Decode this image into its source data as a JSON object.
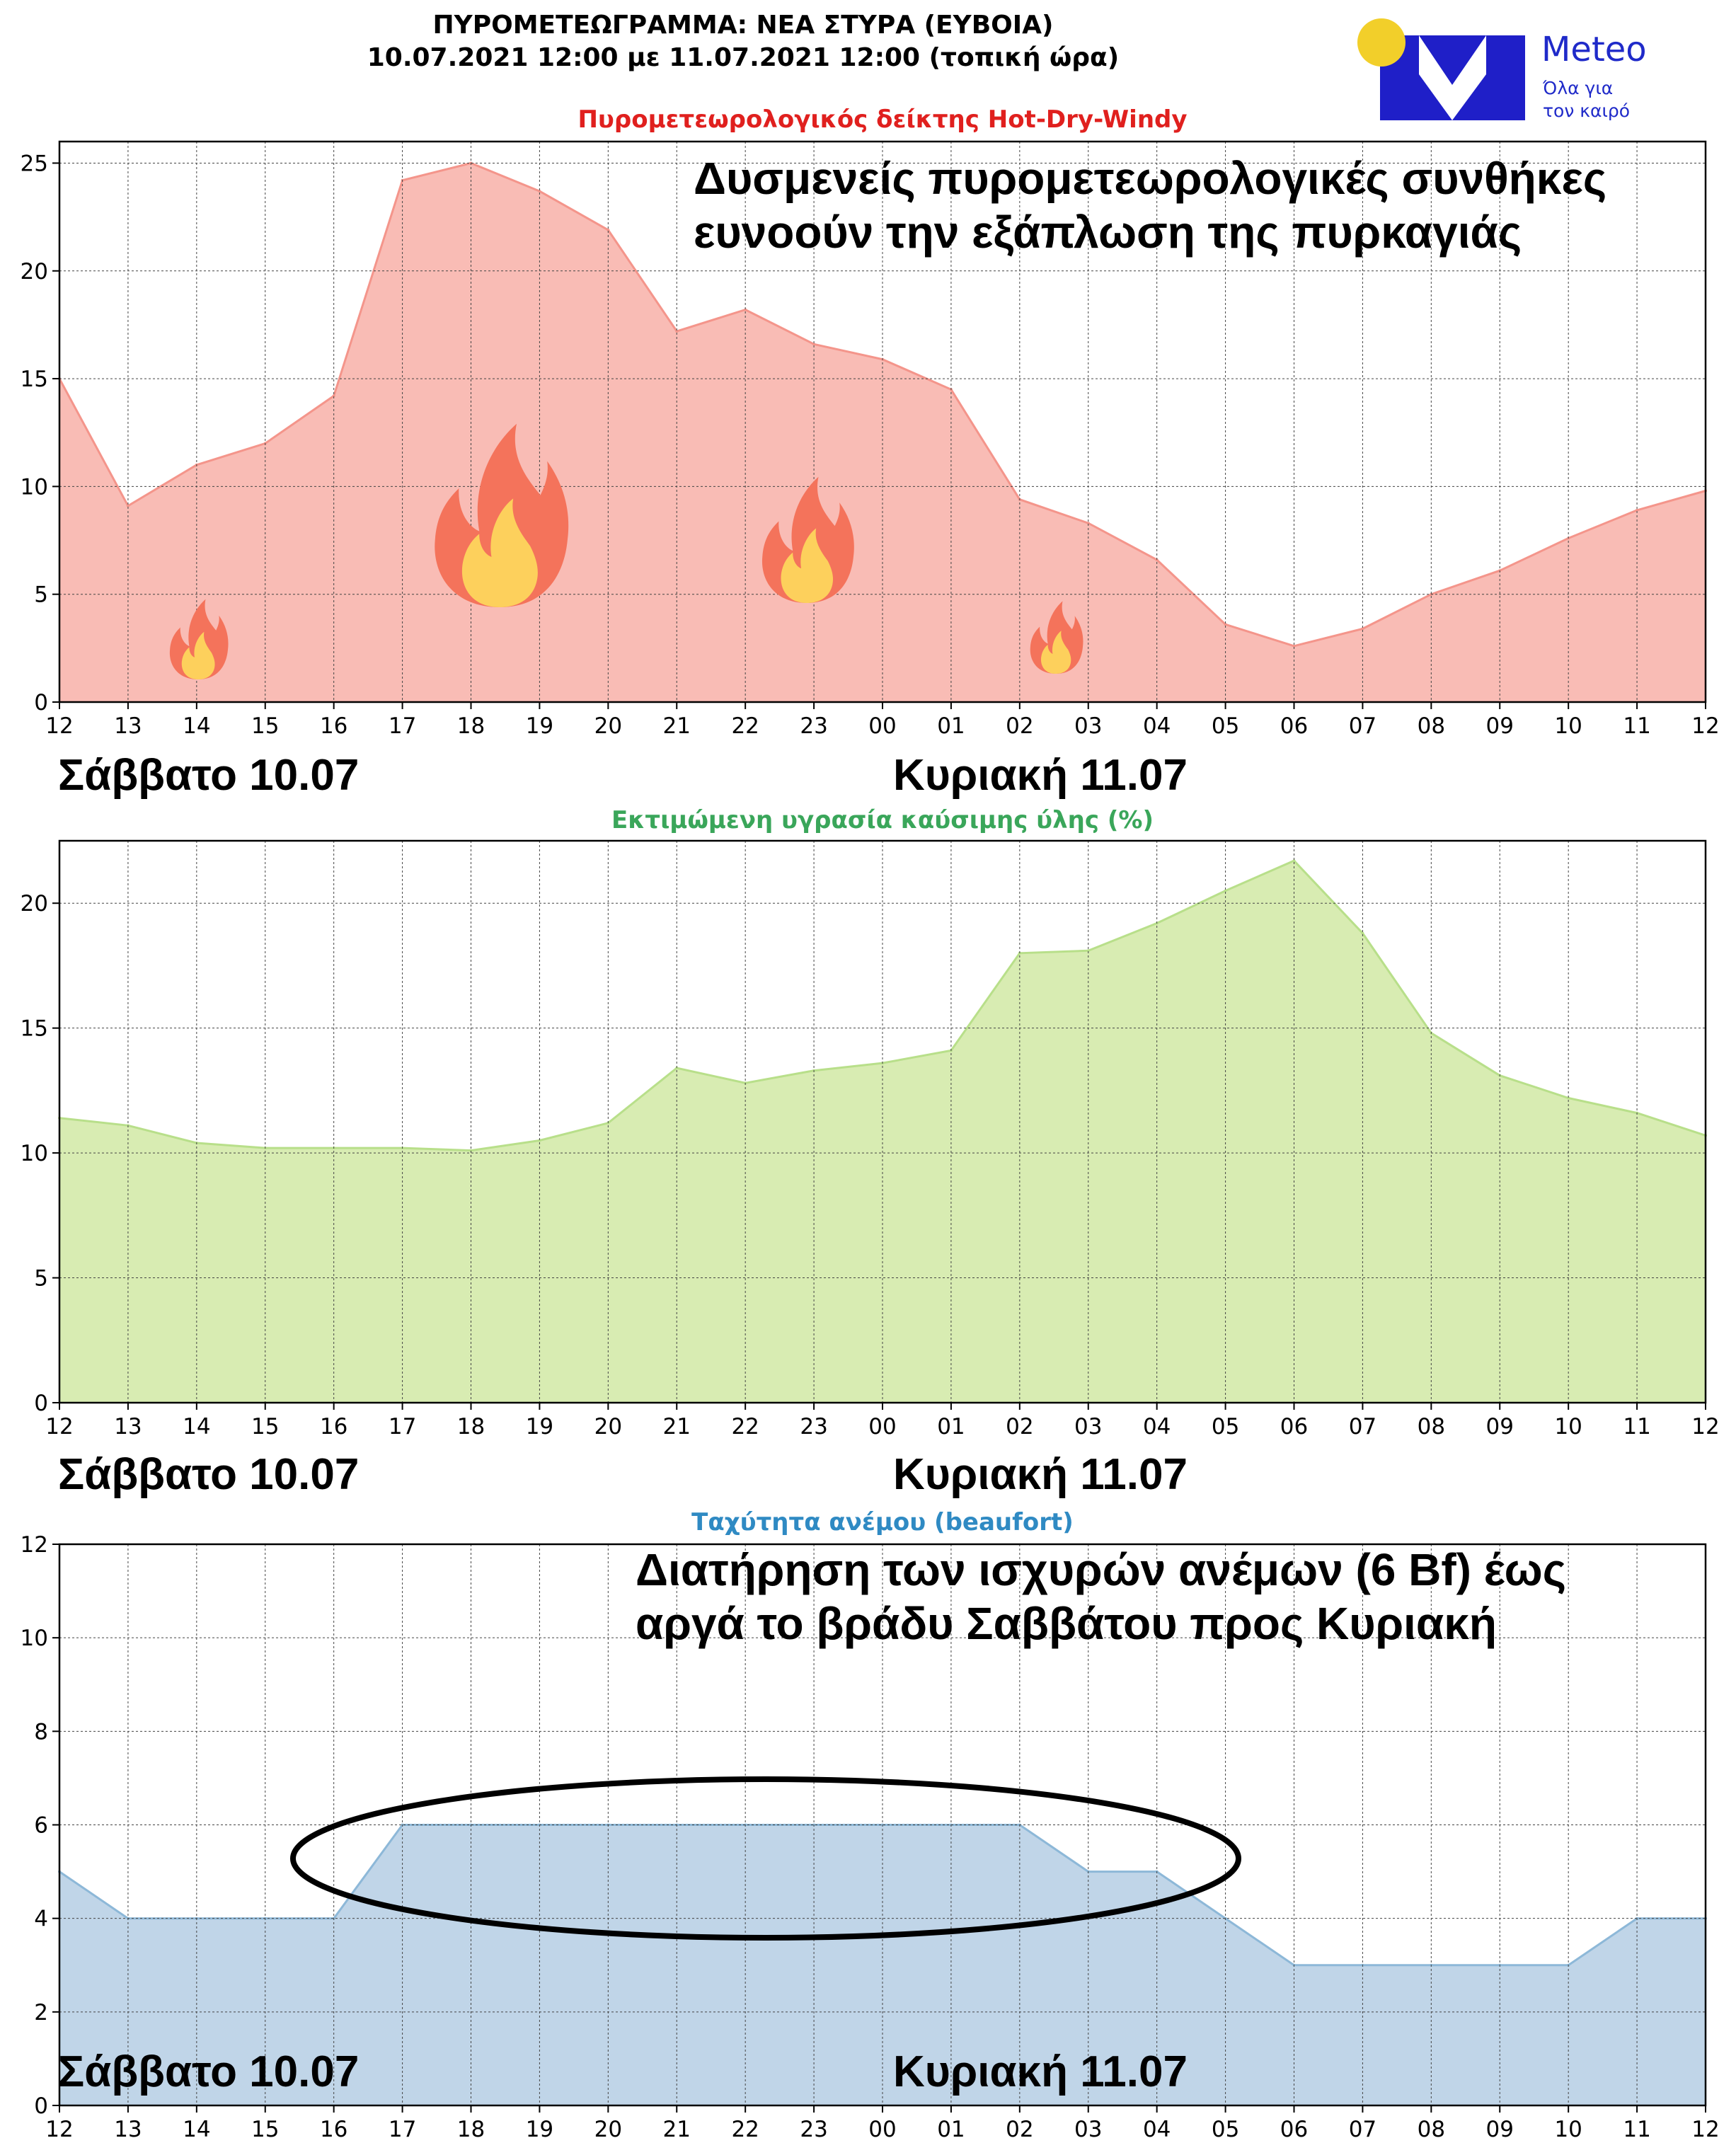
{
  "header": {
    "line1": "ΠΥΡΟΜΕΤΕΩΓΡΑΜΜΑ: ΝΕΑ ΣΤΥΡΑ (ΕΥΒΟΙΑ)",
    "line2": "10.07.2021 12:00 με 11.07.2021 12:00 (τοπική ώρα)"
  },
  "logo": {
    "brand": "Meteo",
    "tagline1": "Όλα για",
    "tagline2": "τον καιρό",
    "colors": {
      "mark": "#1f1fc8",
      "sun": "#f2cf2a",
      "text": "#1f2ac9"
    }
  },
  "day_labels": {
    "saturday": "Σάββατο 10.07",
    "sunday": "Κυριακή 11.07"
  },
  "chart_data": [
    {
      "type": "area",
      "title": "Πυρομετεωρολογικός δείκτης Hot-Dry-Windy",
      "title_color": "#e0201e",
      "x": [
        "12",
        "13",
        "14",
        "15",
        "16",
        "17",
        "18",
        "19",
        "20",
        "21",
        "22",
        "23",
        "00",
        "01",
        "02",
        "03",
        "04",
        "05",
        "06",
        "07",
        "08",
        "09",
        "10",
        "11",
        "12"
      ],
      "values": [
        15.0,
        9.1,
        11.0,
        12.0,
        14.2,
        24.2,
        25.0,
        23.7,
        21.9,
        17.2,
        18.2,
        16.6,
        15.9,
        14.5,
        9.4,
        8.3,
        6.6,
        3.6,
        2.6,
        3.4,
        5.0,
        6.1,
        7.6,
        8.9,
        9.8
      ],
      "ylim": [
        0,
        26
      ],
      "yticks": [
        0,
        5,
        10,
        15,
        20,
        25
      ],
      "fill_color": "#f9bcb5",
      "line_color": "#f4958b",
      "grid": true,
      "annotation": [
        "Δυσμενείς πυρομετεωρολογικές συνθήκες",
        "ευνοούν την εξάπλωση της πυρκαγιάς"
      ],
      "icons": [
        "fire-icon",
        "fire-icon",
        "fire-icon",
        "fire-icon"
      ]
    },
    {
      "type": "area",
      "title": "Εκτιμώμενη υγρασία καύσιμης ύλης (%)",
      "title_color": "#3aa65a",
      "x": [
        "12",
        "13",
        "14",
        "15",
        "16",
        "17",
        "18",
        "19",
        "20",
        "21",
        "22",
        "23",
        "00",
        "01",
        "02",
        "03",
        "04",
        "05",
        "06",
        "07",
        "08",
        "09",
        "10",
        "11",
        "12"
      ],
      "values": [
        11.4,
        11.1,
        10.4,
        10.2,
        10.2,
        10.2,
        10.1,
        10.5,
        11.2,
        13.4,
        12.8,
        13.3,
        13.6,
        14.1,
        18.0,
        18.1,
        19.2,
        20.5,
        21.7,
        18.8,
        14.8,
        13.1,
        12.2,
        11.6,
        10.7
      ],
      "ylim": [
        0,
        22.5
      ],
      "yticks": [
        0,
        5,
        10,
        15,
        20
      ],
      "fill_color": "#d8ecb2",
      "line_color": "#b8df8a",
      "grid": true
    },
    {
      "type": "area",
      "title": "Ταχύτητα ανέμου (beaufort)",
      "title_color": "#2f8ac3",
      "x": [
        "12",
        "13",
        "14",
        "15",
        "16",
        "17",
        "18",
        "19",
        "20",
        "21",
        "22",
        "23",
        "00",
        "01",
        "02",
        "03",
        "04",
        "05",
        "06",
        "07",
        "08",
        "09",
        "10",
        "11",
        "12"
      ],
      "values": [
        5,
        4,
        4,
        4,
        4,
        6,
        6,
        6,
        6,
        6,
        6,
        6,
        6,
        6,
        6,
        5,
        5,
        4,
        3,
        3,
        3,
        3,
        3,
        4,
        4
      ],
      "ylim": [
        0,
        12
      ],
      "yticks": [
        0,
        2,
        4,
        6,
        8,
        10,
        12
      ],
      "fill_color": "#c0d5e8",
      "line_color": "#8db8d8",
      "grid": true,
      "annotation": [
        "Διατήρηση των ισχυρών ανέμων (6 Bf) έως",
        "αργά το βράδυ Σαββάτου προς Κυριακή"
      ],
      "highlight": "ellipse"
    }
  ]
}
